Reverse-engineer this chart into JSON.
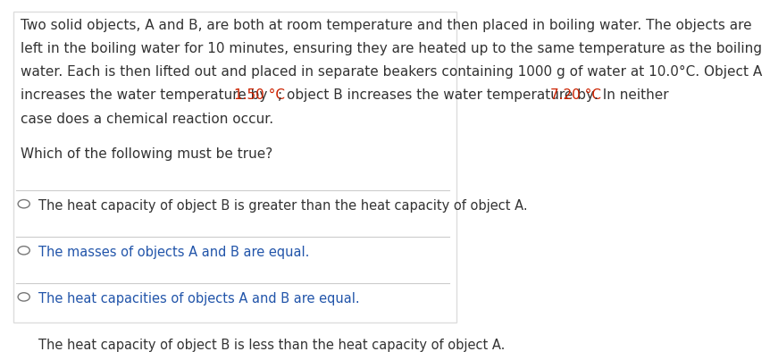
{
  "background_color": "#ffffff",
  "border_color": "#cccccc",
  "text_color": "#333333",
  "highlight_color": "#cc2200",
  "question_color": "#2255aa",
  "divider_color": "#cccccc",
  "paragraph_lines": [
    "Two solid objects, A and B, are both at room temperature and then placed in boiling water. The objects are",
    "left in the boiling water for 10 minutes, ensuring they are heated up to the same temperature as the boiling",
    "water. Each is then lifted out and placed in separate beakers containing 1000 g of water at 10.0°C. Object A",
    "case does a chemical reaction occur."
  ],
  "line4_parts": [
    {
      "text": "increases the water temperature by ",
      "color": "#333333"
    },
    {
      "text": "1.50 °C",
      "color": "#cc2200"
    },
    {
      "text": "; object B increases the water temperature by ",
      "color": "#333333"
    },
    {
      "text": "7.20 °C",
      "color": "#cc2200"
    },
    {
      "text": ". In neither",
      "color": "#333333"
    }
  ],
  "question": "Which of the following must be true?",
  "options": [
    {
      "text": "The heat capacity of object B is greater than the heat capacity of object A.",
      "color": "#333333"
    },
    {
      "text": "The masses of objects A and B are equal.",
      "color": "#2255aa"
    },
    {
      "text": "The heat capacities of objects A and B are equal.",
      "color": "#2255aa"
    },
    {
      "text": "The heat capacity of object B is less than the heat capacity of object A.",
      "color": "#333333"
    }
  ],
  "font_size": 11,
  "option_font_size": 10.5
}
